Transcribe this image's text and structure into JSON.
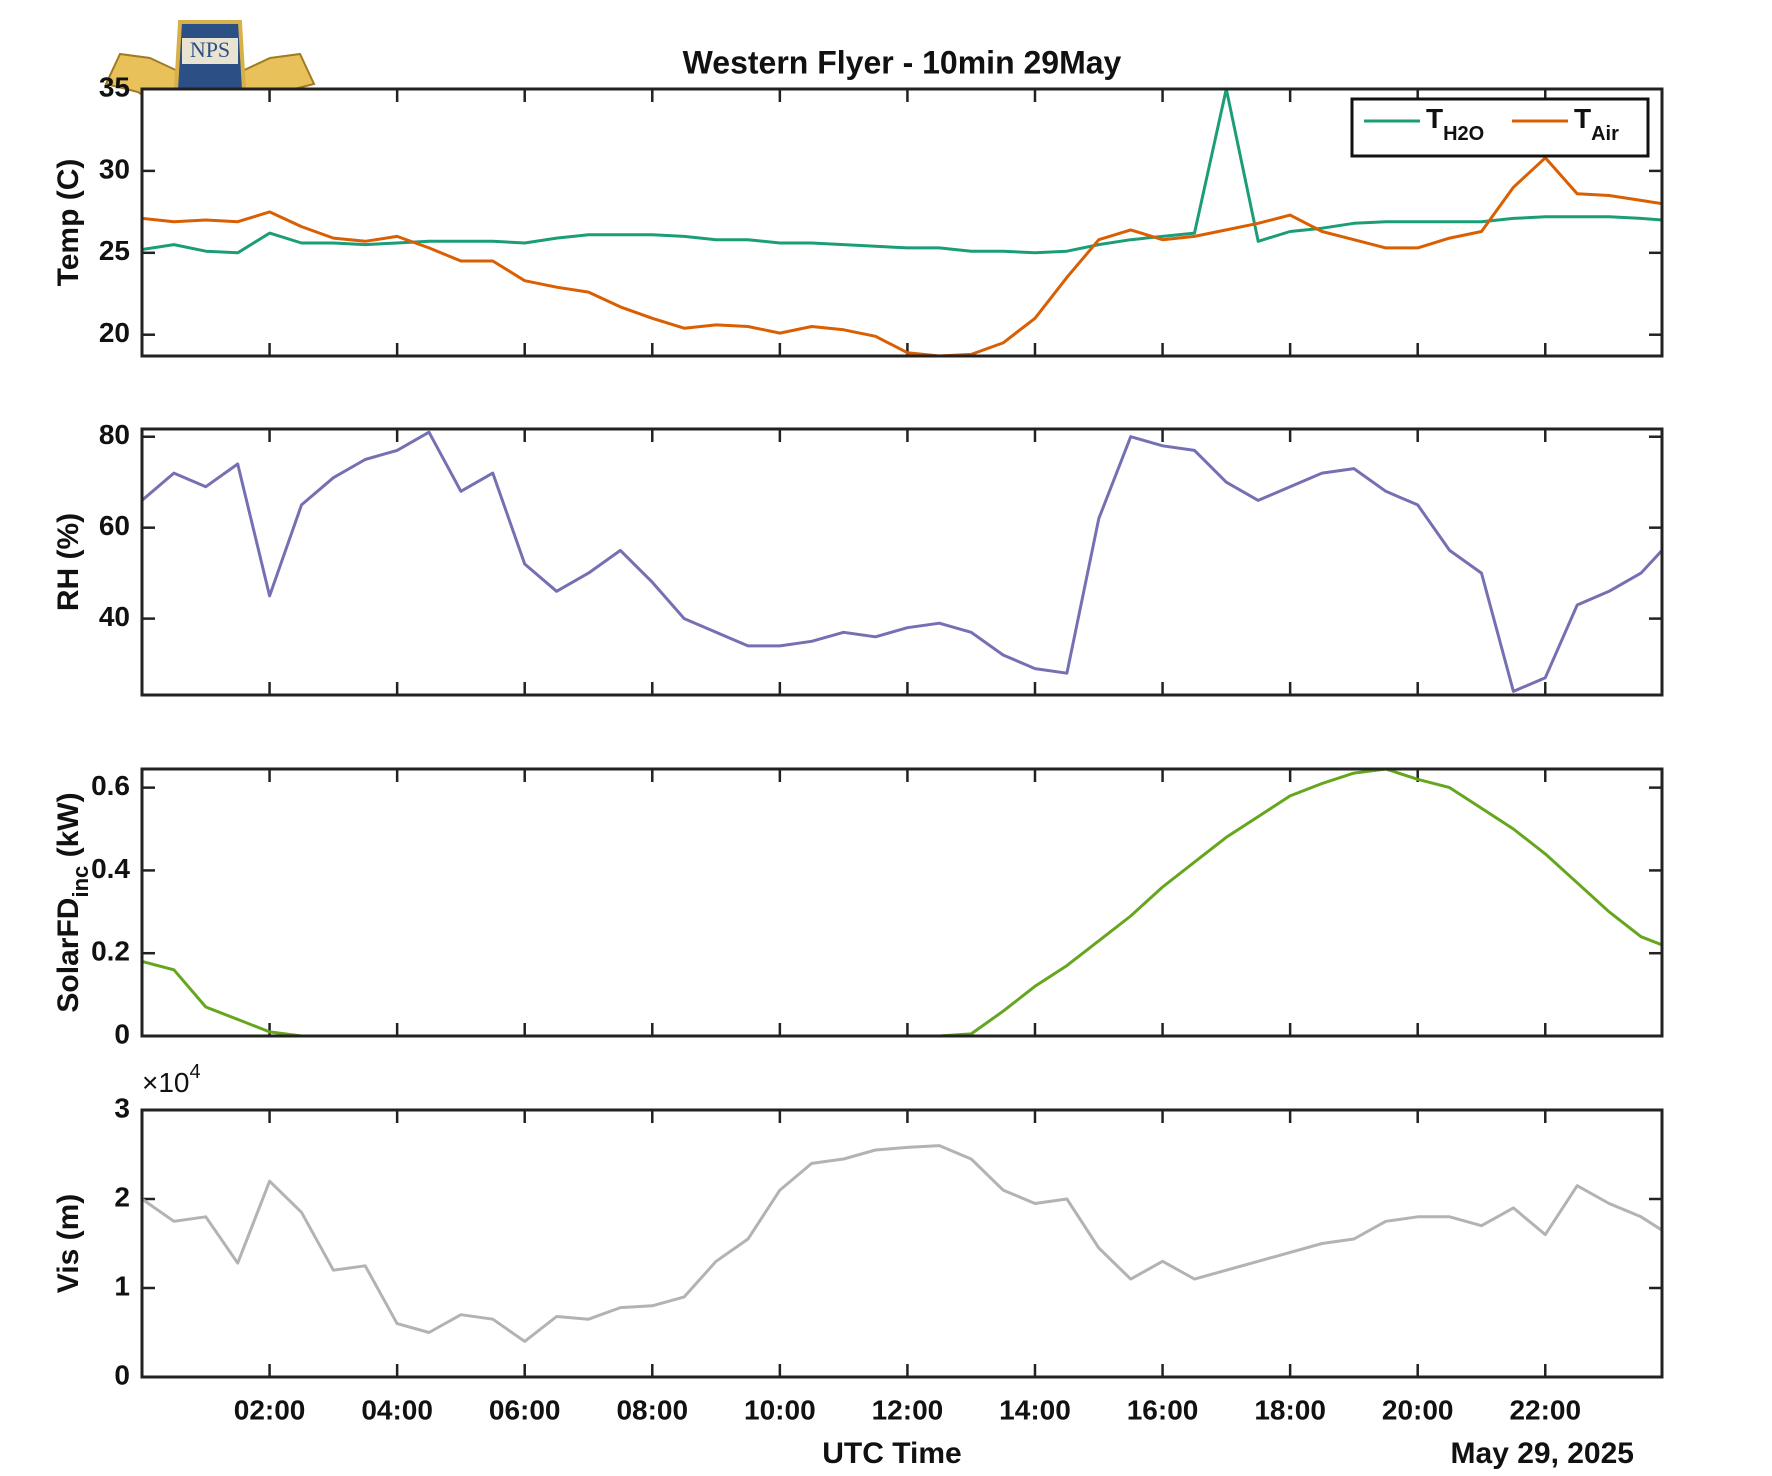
{
  "logo": "NPS",
  "chart_data": [
    {
      "type": "line",
      "title": "Western Flyer - 10min 29May",
      "ylabel": "Temp (C)",
      "x": [
        0,
        0.5,
        1,
        1.5,
        2,
        2.5,
        3,
        3.5,
        4,
        4.5,
        5,
        5.5,
        6,
        6.5,
        7,
        7.5,
        8,
        8.5,
        9,
        9.5,
        10,
        10.5,
        11,
        11.5,
        12,
        12.5,
        13,
        13.5,
        14,
        14.5,
        15,
        15.5,
        16,
        16.5,
        17,
        17.5,
        18,
        18.5,
        19,
        19.5,
        20,
        20.5,
        21,
        21.5,
        22,
        22.5,
        23,
        23.5,
        23.83
      ],
      "series": [
        {
          "name": "T",
          "name_sub": "H2O",
          "color": "#1b9e77",
          "values": [
            25.2,
            25.5,
            25.1,
            25.0,
            26.2,
            25.6,
            25.6,
            25.5,
            25.6,
            25.7,
            25.7,
            25.7,
            25.6,
            25.9,
            26.1,
            26.1,
            26.1,
            26.0,
            25.8,
            25.8,
            25.6,
            25.6,
            25.5,
            25.4,
            25.3,
            25.3,
            25.1,
            25.1,
            25.0,
            25.1,
            25.5,
            25.8,
            26.0,
            26.2,
            35.0,
            25.7,
            26.3,
            26.5,
            26.8,
            26.9,
            26.9,
            26.9,
            26.9,
            27.1,
            27.2,
            27.2,
            27.2,
            27.1,
            27.0
          ]
        },
        {
          "name": "T",
          "name_sub": "Air",
          "color": "#d95f02",
          "values": [
            27.1,
            26.9,
            27.0,
            26.9,
            27.5,
            26.6,
            25.9,
            25.7,
            26.0,
            25.3,
            24.5,
            24.5,
            23.3,
            22.9,
            22.6,
            21.7,
            21.0,
            20.4,
            20.6,
            20.5,
            20.1,
            20.5,
            20.3,
            19.9,
            18.9,
            18.7,
            18.8,
            19.5,
            21.0,
            23.5,
            25.8,
            26.4,
            25.8,
            26.0,
            26.4,
            26.8,
            27.3,
            26.3,
            25.8,
            25.3,
            25.3,
            25.9,
            26.3,
            29.0,
            30.8,
            28.6,
            28.5,
            28.2,
            28.0
          ]
        }
      ],
      "xlim": [
        0,
        23.83
      ],
      "xticks": [
        2,
        4,
        6,
        8,
        10,
        12,
        14,
        16,
        18,
        20,
        22
      ],
      "ylim": [
        18.7,
        35
      ],
      "yticks": [
        20,
        25,
        30,
        35
      ],
      "legend": "upper right"
    },
    {
      "type": "line",
      "ylabel": "RH (%)",
      "x": [
        0,
        0.5,
        1,
        1.5,
        2,
        2.5,
        3,
        3.5,
        4,
        4.5,
        5,
        5.5,
        6,
        6.5,
        7,
        7.5,
        8,
        8.5,
        9,
        9.5,
        10,
        10.5,
        11,
        11.5,
        12,
        12.5,
        13,
        13.5,
        14,
        14.5,
        15,
        15.5,
        16,
        16.5,
        17,
        17.5,
        18,
        18.5,
        19,
        19.5,
        20,
        20.5,
        21,
        21.5,
        22,
        22.5,
        23,
        23.5,
        23.83
      ],
      "series": [
        {
          "color": "#7570b3",
          "values": [
            66,
            72,
            69,
            74,
            45,
            65,
            71,
            75,
            77,
            81,
            68,
            72,
            52,
            46,
            50,
            55,
            48,
            40,
            37,
            34,
            34,
            35,
            37,
            36,
            38,
            39,
            37,
            32,
            29,
            28,
            62,
            80,
            78,
            77,
            70,
            66,
            69,
            72,
            73,
            68,
            65,
            55,
            50,
            24,
            27,
            43,
            46,
            50,
            55
          ]
        }
      ],
      "xlim": [
        0,
        23.83
      ],
      "xticks": [
        2,
        4,
        6,
        8,
        10,
        12,
        14,
        16,
        18,
        20,
        22
      ],
      "ylim": [
        23.2,
        81.7
      ],
      "yticks": [
        40,
        60,
        80
      ]
    },
    {
      "type": "line",
      "ylabel": "SolarFD",
      "ylabel_sub": "inc",
      "ylabel_unit": " (kW)",
      "x": [
        0,
        0.5,
        1,
        1.5,
        2,
        2.5,
        3,
        3.5,
        4,
        4.5,
        5,
        5.5,
        6,
        6.5,
        7,
        7.5,
        8,
        8.5,
        9,
        9.5,
        10,
        10.5,
        11,
        11.5,
        12,
        12.5,
        13,
        13.5,
        14,
        14.5,
        15,
        15.5,
        16,
        16.5,
        17,
        17.5,
        18,
        18.5,
        19,
        19.5,
        20,
        20.5,
        21,
        21.5,
        22,
        22.5,
        23,
        23.5,
        23.83
      ],
      "series": [
        {
          "color": "#66a61e",
          "values": [
            0.18,
            0.16,
            0.07,
            0.04,
            0.01,
            0,
            0,
            0,
            0,
            0,
            0,
            0,
            0,
            0,
            0,
            0,
            0,
            0,
            0,
            0,
            0,
            0,
            0,
            0,
            0,
            0,
            0.005,
            0.06,
            0.12,
            0.17,
            0.23,
            0.29,
            0.36,
            0.42,
            0.48,
            0.53,
            0.58,
            0.61,
            0.635,
            0.645,
            0.62,
            0.6,
            0.55,
            0.5,
            0.44,
            0.37,
            0.3,
            0.24,
            0.22
          ]
        }
      ],
      "xlim": [
        0,
        23.83
      ],
      "xticks": [
        2,
        4,
        6,
        8,
        10,
        12,
        14,
        16,
        18,
        20,
        22
      ],
      "ylim": [
        0,
        0.645
      ],
      "yticks": [
        0,
        0.2,
        0.4,
        0.6
      ]
    },
    {
      "type": "line",
      "ylabel": "Vis (m)",
      "xlabel": "UTC Time",
      "xnote": "May 29, 2025",
      "yexponent": {
        "base": "×10",
        "power": "4"
      },
      "x": [
        0,
        0.5,
        1,
        1.5,
        2,
        2.5,
        3,
        3.5,
        4,
        4.5,
        5,
        5.5,
        6,
        6.5,
        7,
        7.5,
        8,
        8.5,
        9,
        9.5,
        10,
        10.5,
        11,
        11.5,
        12,
        12.5,
        13,
        13.5,
        14,
        14.5,
        15,
        15.5,
        16,
        16.5,
        17,
        17.5,
        18,
        18.5,
        19,
        19.5,
        20,
        20.5,
        21,
        21.5,
        22,
        22.5,
        23,
        23.5,
        23.83
      ],
      "series": [
        {
          "color": "#b3b3b3",
          "values": [
            20000,
            17500,
            18000,
            12800,
            22000,
            18500,
            12000,
            12500,
            6000,
            5000,
            7000,
            6500,
            4000,
            6800,
            6500,
            7800,
            8000,
            9000,
            13000,
            15500,
            21000,
            24000,
            24500,
            25500,
            25800,
            26000,
            24500,
            21000,
            19500,
            20000,
            14500,
            11000,
            13000,
            11000,
            12000,
            13000,
            14000,
            15000,
            15500,
            17500,
            18000,
            18000,
            17000,
            19000,
            16000,
            21500,
            19500,
            18000,
            16500
          ]
        }
      ],
      "xlim": [
        0,
        23.83
      ],
      "xticks": [
        {
          "value": 2,
          "label": "02:00"
        },
        {
          "value": 4,
          "label": "04:00"
        },
        {
          "value": 6,
          "label": "06:00"
        },
        {
          "value": 8,
          "label": "08:00"
        },
        {
          "value": 10,
          "label": "10:00"
        },
        {
          "value": 12,
          "label": "12:00"
        },
        {
          "value": 14,
          "label": "14:00"
        },
        {
          "value": 16,
          "label": "16:00"
        },
        {
          "value": 18,
          "label": "18:00"
        },
        {
          "value": 20,
          "label": "20:00"
        },
        {
          "value": 22,
          "label": "22:00"
        }
      ],
      "ylim": [
        0,
        30000
      ],
      "yticks": [
        0,
        {
          "value": 10000,
          "label": "1"
        },
        {
          "value": 20000,
          "label": "2"
        },
        {
          "value": 30000,
          "label": "3"
        }
      ]
    }
  ]
}
